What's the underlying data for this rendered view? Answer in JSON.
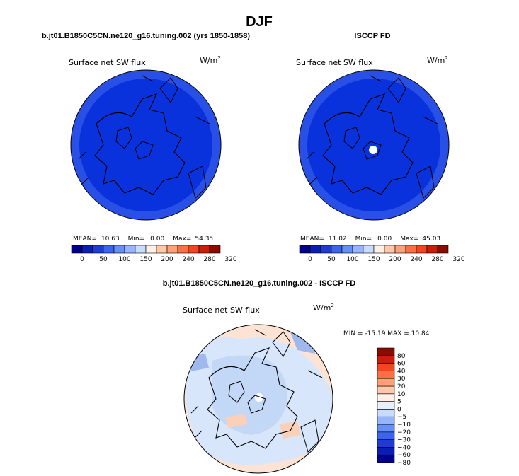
{
  "figure": {
    "season": "DJF"
  },
  "colors": {
    "abs_scale": [
      "#00008c",
      "#0a1eb4",
      "#1e3cd2",
      "#3c64ee",
      "#6490f8",
      "#96b4ff",
      "#c8dcff",
      "#fff0e6",
      "#ffc8aa",
      "#ffa078",
      "#ff6e46",
      "#f04622",
      "#c81e0a",
      "#8c0a00"
    ],
    "diff_scale": [
      "#00008c",
      "#0a1eb4",
      "#1e3cd2",
      "#3c64ee",
      "#6490f8",
      "#96b4ff",
      "#c8dcff",
      "#e6f0ff",
      "#fff0e6",
      "#ffc8aa",
      "#ffa078",
      "#ff6e46",
      "#f04622",
      "#c81e0a",
      "#8c0a00"
    ],
    "map_main": "#0a32dc",
    "map_outer": "#2850e6"
  },
  "chart_data": [
    {
      "type": "heatmap",
      "projection": "polar-stereographic",
      "title": "b.jt01.B1850C5CN.ne120_g16.tuning.002 (yrs 1850-1858)",
      "variable": "Surface net SW flux",
      "units": "W/m",
      "units_exp": "2",
      "mean_label": "MEAN=",
      "mean": "10.63",
      "min_label": "Min=",
      "min": "0.00",
      "max_label": "Max=",
      "max": "54.35",
      "colorbar_ticks": [
        "0",
        "50",
        "100",
        "150",
        "200",
        "240",
        "280",
        "320"
      ]
    },
    {
      "type": "heatmap",
      "projection": "polar-stereographic",
      "title": "ISCCP FD",
      "variable": "Surface net SW flux",
      "units": "W/m",
      "units_exp": "2",
      "mean_label": "MEAN=",
      "mean": "11.02",
      "min_label": "Min=",
      "min": "0.00",
      "max_label": "Max=",
      "max": "45.03",
      "colorbar_ticks": [
        "0",
        "50",
        "100",
        "150",
        "200",
        "240",
        "280",
        "320"
      ]
    },
    {
      "type": "heatmap",
      "projection": "polar-stereographic",
      "title": "b.jt01.B1850C5CN.ne120_g16.tuning.002 - ISCCP FD",
      "variable": "Surface net SW flux",
      "units": "W/m",
      "units_exp": "2",
      "minmax_text": "MIN = -15.19  MAX =   10.84",
      "colorbar_ticks": [
        "80",
        "60",
        "40",
        "30",
        "20",
        "10",
        "5",
        "0",
        "−5",
        "−10",
        "−20",
        "−30",
        "−40",
        "−60",
        "−80"
      ]
    }
  ]
}
